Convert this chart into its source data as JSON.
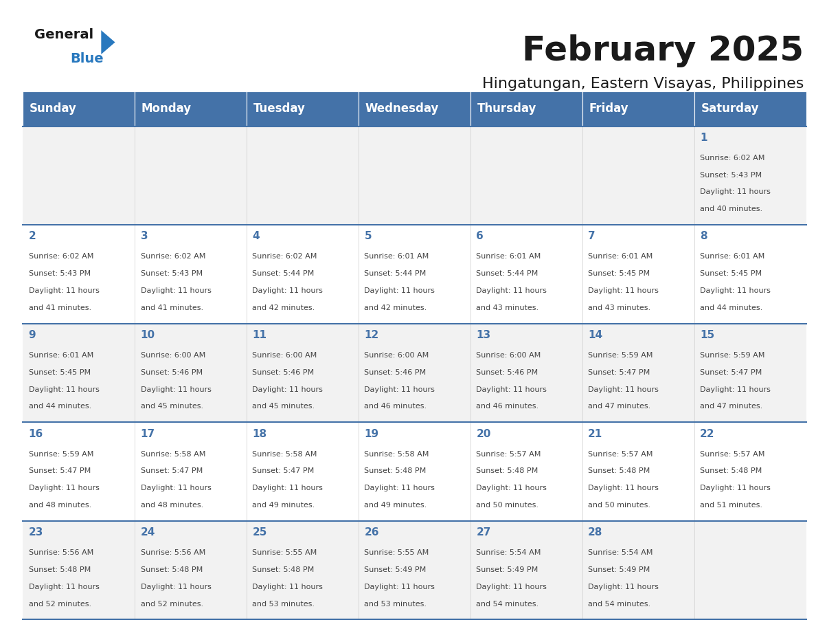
{
  "title": "February 2025",
  "subtitle": "Hingatungan, Eastern Visayas, Philippines",
  "header_bg": "#4472a8",
  "header_text": "#ffffff",
  "row_bg_even": "#f2f2f2",
  "row_bg_odd": "#ffffff",
  "separator_color": "#4472a8",
  "day_headers": [
    "Sunday",
    "Monday",
    "Tuesday",
    "Wednesday",
    "Thursday",
    "Friday",
    "Saturday"
  ],
  "calendar": [
    [
      null,
      null,
      null,
      null,
      null,
      null,
      {
        "day": "1",
        "sunrise": "6:02 AM",
        "sunset": "5:43 PM",
        "daylight": "11 hours",
        "daylight2": "and 40 minutes."
      }
    ],
    [
      {
        "day": "2",
        "sunrise": "6:02 AM",
        "sunset": "5:43 PM",
        "daylight": "11 hours",
        "daylight2": "and 41 minutes."
      },
      {
        "day": "3",
        "sunrise": "6:02 AM",
        "sunset": "5:43 PM",
        "daylight": "11 hours",
        "daylight2": "and 41 minutes."
      },
      {
        "day": "4",
        "sunrise": "6:02 AM",
        "sunset": "5:44 PM",
        "daylight": "11 hours",
        "daylight2": "and 42 minutes."
      },
      {
        "day": "5",
        "sunrise": "6:01 AM",
        "sunset": "5:44 PM",
        "daylight": "11 hours",
        "daylight2": "and 42 minutes."
      },
      {
        "day": "6",
        "sunrise": "6:01 AM",
        "sunset": "5:44 PM",
        "daylight": "11 hours",
        "daylight2": "and 43 minutes."
      },
      {
        "day": "7",
        "sunrise": "6:01 AM",
        "sunset": "5:45 PM",
        "daylight": "11 hours",
        "daylight2": "and 43 minutes."
      },
      {
        "day": "8",
        "sunrise": "6:01 AM",
        "sunset": "5:45 PM",
        "daylight": "11 hours",
        "daylight2": "and 44 minutes."
      }
    ],
    [
      {
        "day": "9",
        "sunrise": "6:01 AM",
        "sunset": "5:45 PM",
        "daylight": "11 hours",
        "daylight2": "and 44 minutes."
      },
      {
        "day": "10",
        "sunrise": "6:00 AM",
        "sunset": "5:46 PM",
        "daylight": "11 hours",
        "daylight2": "and 45 minutes."
      },
      {
        "day": "11",
        "sunrise": "6:00 AM",
        "sunset": "5:46 PM",
        "daylight": "11 hours",
        "daylight2": "and 45 minutes."
      },
      {
        "day": "12",
        "sunrise": "6:00 AM",
        "sunset": "5:46 PM",
        "daylight": "11 hours",
        "daylight2": "and 46 minutes."
      },
      {
        "day": "13",
        "sunrise": "6:00 AM",
        "sunset": "5:46 PM",
        "daylight": "11 hours",
        "daylight2": "and 46 minutes."
      },
      {
        "day": "14",
        "sunrise": "5:59 AM",
        "sunset": "5:47 PM",
        "daylight": "11 hours",
        "daylight2": "and 47 minutes."
      },
      {
        "day": "15",
        "sunrise": "5:59 AM",
        "sunset": "5:47 PM",
        "daylight": "11 hours",
        "daylight2": "and 47 minutes."
      }
    ],
    [
      {
        "day": "16",
        "sunrise": "5:59 AM",
        "sunset": "5:47 PM",
        "daylight": "11 hours",
        "daylight2": "and 48 minutes."
      },
      {
        "day": "17",
        "sunrise": "5:58 AM",
        "sunset": "5:47 PM",
        "daylight": "11 hours",
        "daylight2": "and 48 minutes."
      },
      {
        "day": "18",
        "sunrise": "5:58 AM",
        "sunset": "5:47 PM",
        "daylight": "11 hours",
        "daylight2": "and 49 minutes."
      },
      {
        "day": "19",
        "sunrise": "5:58 AM",
        "sunset": "5:48 PM",
        "daylight": "11 hours",
        "daylight2": "and 49 minutes."
      },
      {
        "day": "20",
        "sunrise": "5:57 AM",
        "sunset": "5:48 PM",
        "daylight": "11 hours",
        "daylight2": "and 50 minutes."
      },
      {
        "day": "21",
        "sunrise": "5:57 AM",
        "sunset": "5:48 PM",
        "daylight": "11 hours",
        "daylight2": "and 50 minutes."
      },
      {
        "day": "22",
        "sunrise": "5:57 AM",
        "sunset": "5:48 PM",
        "daylight": "11 hours",
        "daylight2": "and 51 minutes."
      }
    ],
    [
      {
        "day": "23",
        "sunrise": "5:56 AM",
        "sunset": "5:48 PM",
        "daylight": "11 hours",
        "daylight2": "and 52 minutes."
      },
      {
        "day": "24",
        "sunrise": "5:56 AM",
        "sunset": "5:48 PM",
        "daylight": "11 hours",
        "daylight2": "and 52 minutes."
      },
      {
        "day": "25",
        "sunrise": "5:55 AM",
        "sunset": "5:48 PM",
        "daylight": "11 hours",
        "daylight2": "and 53 minutes."
      },
      {
        "day": "26",
        "sunrise": "5:55 AM",
        "sunset": "5:49 PM",
        "daylight": "11 hours",
        "daylight2": "and 53 minutes."
      },
      {
        "day": "27",
        "sunrise": "5:54 AM",
        "sunset": "5:49 PM",
        "daylight": "11 hours",
        "daylight2": "and 54 minutes."
      },
      {
        "day": "28",
        "sunrise": "5:54 AM",
        "sunset": "5:49 PM",
        "daylight": "11 hours",
        "daylight2": "and 54 minutes."
      },
      null
    ]
  ],
  "logo_color_general": "#1a1a1a",
  "logo_color_blue": "#2878be",
  "logo_triangle_color": "#2878be",
  "title_fontsize": 36,
  "subtitle_fontsize": 16,
  "header_fontsize": 12,
  "day_num_fontsize": 11,
  "cell_text_fontsize": 8
}
